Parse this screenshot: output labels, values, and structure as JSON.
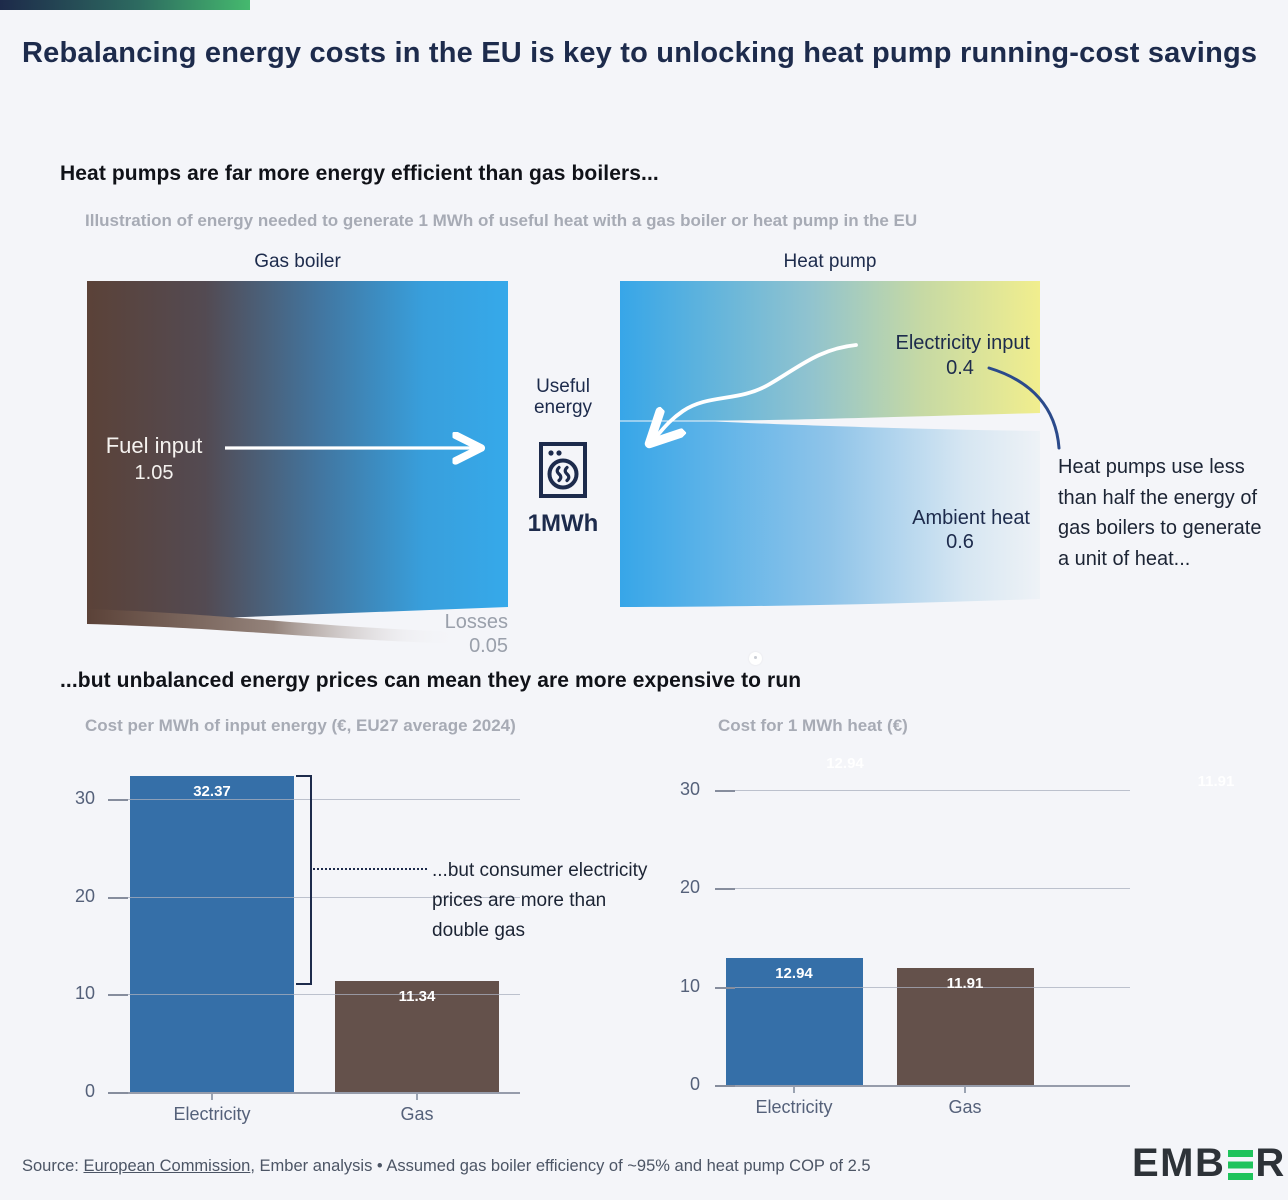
{
  "page": {
    "title": "Rebalancing energy costs in the EU is key to unlocking heat pump running-cost savings",
    "background_color": "#f4f5f9",
    "accent_bar_colors": [
      "#1d2a4a",
      "#45b96e"
    ]
  },
  "section_efficiency": {
    "heading": "Heat pumps are far more energy efficient than gas boilers...",
    "subtitle": "Illustration of energy needed to generate 1 MWh of useful heat with a gas boiler or heat pump in the EU",
    "gas_boiler": {
      "label": "Gas boiler",
      "fuel_input_label": "Fuel input",
      "fuel_input_value": "1.05",
      "losses_label": "Losses",
      "losses_value": "0.05",
      "gradient": [
        "#5b4238",
        "#36a9ea"
      ]
    },
    "useful_energy": {
      "label": "Useful energy",
      "value": "1MWh",
      "icon": "heater-icon"
    },
    "heat_pump": {
      "label": "Heat pump",
      "electricity_label": "Electricity input",
      "electricity_value": "0.4",
      "ambient_label": "Ambient heat",
      "ambient_value": "0.6",
      "electricity_gradient": [
        "#37a6e8",
        "#f1ee8e"
      ],
      "ambient_gradient": [
        "#37a6e8",
        "#eef2f6"
      ]
    },
    "annotation": "Heat pumps use less than half the energy of gas boilers to generate a unit of heat..."
  },
  "section_prices": {
    "heading": "...but unbalanced energy prices can mean they are more expensive to run",
    "bracket_annotation": "...but consumer electricity prices are more than double gas"
  },
  "chart_data": [
    {
      "type": "bar",
      "title": "Cost per MWh of input energy (€, EU27 average 2024)",
      "categories": [
        "Electricity",
        "Gas"
      ],
      "values": [
        32.37,
        11.34
      ],
      "value_labels": [
        "32.37",
        "11.34"
      ],
      "bar_colors": [
        "#356fa8",
        "#64514b"
      ],
      "yticks": [
        0,
        10,
        20,
        30
      ],
      "ylim": [
        0,
        32.8
      ],
      "grid": true,
      "legend": "none"
    },
    {
      "type": "bar",
      "title": "Cost for 1 MWh heat (€)",
      "categories": [
        "Electricity",
        "Gas"
      ],
      "values": [
        12.94,
        11.91
      ],
      "value_labels": [
        "12.94",
        "11.91"
      ],
      "ghost_labels": [
        "12.94",
        "11.91"
      ],
      "bar_colors": [
        "#356fa8",
        "#64514b"
      ],
      "yticks": [
        0,
        10,
        20,
        30
      ],
      "ylim": [
        0,
        32.5
      ],
      "grid": true,
      "legend": "none"
    }
  ],
  "footer": {
    "source_prefix": "Source: ",
    "source_link": "European Commission",
    "source_rest": ", Ember analysis • Assumed gas boiler efficiency of ~95% and heat pump COP of 2.5",
    "logo_left": "EMB",
    "logo_right": "R",
    "logo_green": "#1fc35c",
    "logo_dark": "#2d3238"
  }
}
